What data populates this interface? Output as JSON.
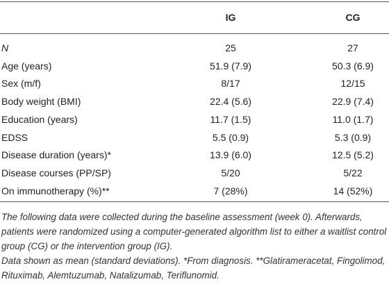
{
  "table": {
    "header": [
      "IG",
      "CG"
    ],
    "rows": [
      [
        "N",
        "25",
        "27"
      ],
      [
        "Age (years)",
        "51.9 (7.9)",
        "50.3 (6.9)"
      ],
      [
        "Sex (m/f)",
        "8/17",
        "12/15"
      ],
      [
        "Body weight (BMI)",
        "22.4 (5.6)",
        "22.9 (7.4)"
      ],
      [
        "Education (years)",
        "11.7 (1.5)",
        "11.0 (1.7)"
      ],
      [
        "EDSS",
        "5.5 (0.9)",
        "5.3 (0.9)"
      ],
      [
        "Disease duration (years)*",
        "13.9 (6.0)",
        "12.5 (5.2)"
      ],
      [
        "Disease courses (PP/SP)",
        "5/20",
        "5/22"
      ],
      [
        "On immunotherapy (%)**",
        "7 (28%)",
        "14 (52%)"
      ]
    ],
    "notes": [
      "The following data were collected during the baseline assessment (week 0). Afterwards, patients were randomized using a computer-generated algorithm list to either a waitlist control group (CG) or the intervention group (IG).",
      "Data shown as mean (standard deviations). *From diagnosis. **Glatirameracetat, Fingolimod, Rituximab, Alemtuzumab, Natalizumab, Teriflunomid."
    ]
  }
}
